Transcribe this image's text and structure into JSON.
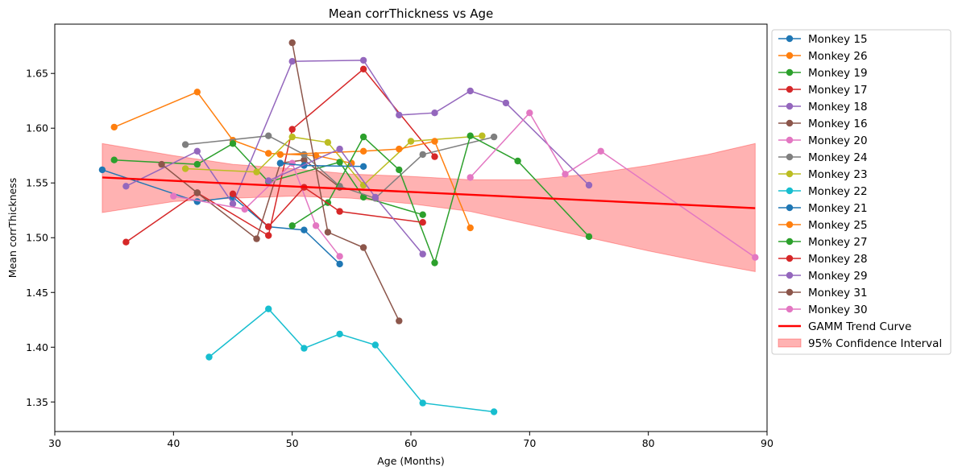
{
  "chart_data": {
    "type": "line",
    "title": "Mean corrThickness vs Age",
    "xlabel": "Age (Months)",
    "ylabel": "Mean corrThickness",
    "xlim": [
      30,
      90
    ],
    "ylim": [
      1.323,
      1.695
    ],
    "xticks": [
      "30",
      "40",
      "50",
      "60",
      "70",
      "80",
      "90"
    ],
    "yticks": [
      "1.35",
      "1.40",
      "1.45",
      "1.50",
      "1.55",
      "1.60",
      "1.65"
    ],
    "grid": false,
    "legend_position": "outside-right",
    "series": [
      {
        "name": "Monkey 15",
        "color": "#1f77b4",
        "x": [
          34,
          42,
          45,
          48,
          51,
          54
        ],
        "y": [
          1.562,
          1.533,
          1.537,
          1.51,
          1.507,
          1.476
        ]
      },
      {
        "name": "Monkey 26",
        "color": "#ff7f0e",
        "x": [
          35,
          42,
          45,
          48,
          52,
          55
        ],
        "y": [
          1.601,
          1.633,
          1.589,
          1.577,
          1.575,
          1.568
        ]
      },
      {
        "name": "Monkey 19",
        "color": "#2ca02c",
        "x": [
          35,
          42,
          45,
          48,
          54,
          56,
          61
        ],
        "y": [
          1.571,
          1.567,
          1.586,
          1.551,
          1.569,
          1.537,
          1.521
        ]
      },
      {
        "name": "Monkey 17",
        "color": "#d62728",
        "x": [
          36,
          42,
          48,
          50,
          56,
          62
        ],
        "y": [
          1.496,
          1.541,
          1.502,
          1.599,
          1.654,
          1.574
        ]
      },
      {
        "name": "Monkey 18",
        "color": "#9467bd",
        "x": [
          36,
          42,
          45,
          50,
          56,
          59,
          62,
          65,
          68,
          75
        ],
        "y": [
          1.547,
          1.579,
          1.531,
          1.661,
          1.662,
          1.612,
          1.614,
          1.634,
          1.623,
          1.548
        ]
      },
      {
        "name": "Monkey 16",
        "color": "#8c564b",
        "x": [
          39,
          42,
          47,
          49,
          51,
          54
        ],
        "y": [
          1.567,
          1.541,
          1.499,
          1.568,
          1.571,
          1.546
        ]
      },
      {
        "name": "Monkey 20",
        "color": "#e377c2",
        "x": [
          40,
          46,
          50,
          52,
          54
        ],
        "y": [
          1.538,
          1.526,
          1.568,
          1.511,
          1.483
        ]
      },
      {
        "name": "Monkey 24",
        "color": "#7f7f7f",
        "x": [
          41,
          48,
          51,
          54,
          57,
          61,
          67
        ],
        "y": [
          1.585,
          1.593,
          1.576,
          1.547,
          1.536,
          1.576,
          1.592
        ]
      },
      {
        "name": "Monkey 23",
        "color": "#bcbd22",
        "x": [
          41,
          47,
          50,
          53,
          56,
          60,
          66
        ],
        "y": [
          1.563,
          1.56,
          1.592,
          1.587,
          1.548,
          1.588,
          1.593
        ]
      },
      {
        "name": "Monkey 22",
        "color": "#17becf",
        "x": [
          43,
          48,
          51,
          54,
          57,
          61,
          67
        ],
        "y": [
          1.391,
          1.435,
          1.399,
          1.412,
          1.402,
          1.349,
          1.341
        ]
      },
      {
        "name": "Monkey 21",
        "color": "#1f77b4",
        "x": [
          49,
          51,
          56
        ],
        "y": [
          1.568,
          1.566,
          1.565
        ]
      },
      {
        "name": "Monkey 25",
        "color": "#ff7f0e",
        "x": [
          49,
          56,
          59,
          62,
          65
        ],
        "y": [
          1.576,
          1.579,
          1.581,
          1.588,
          1.509
        ]
      },
      {
        "name": "Monkey 27",
        "color": "#2ca02c",
        "x": [
          50,
          53,
          56,
          59,
          62,
          65,
          69,
          75
        ],
        "y": [
          1.511,
          1.532,
          1.592,
          1.562,
          1.477,
          1.593,
          1.57,
          1.501
        ]
      },
      {
        "name": "Monkey 28",
        "color": "#d62728",
        "x": [
          45,
          48,
          51,
          54,
          61
        ],
        "y": [
          1.54,
          1.51,
          1.546,
          1.524,
          1.514
        ]
      },
      {
        "name": "Monkey 29",
        "color": "#9467bd",
        "x": [
          48,
          54,
          57,
          61
        ],
        "y": [
          1.552,
          1.581,
          1.537,
          1.485
        ]
      },
      {
        "name": "Monkey 31",
        "color": "#8c564b",
        "x": [
          50,
          53,
          56,
          59
        ],
        "y": [
          1.678,
          1.505,
          1.491,
          1.424
        ]
      },
      {
        "name": "Monkey 30",
        "color": "#e377c2",
        "x": [
          65,
          70,
          73,
          76,
          89
        ],
        "y": [
          1.555,
          1.614,
          1.558,
          1.579,
          1.482
        ]
      }
    ],
    "trend": {
      "name": "GAMM Trend Curve",
      "color": "#ff0000",
      "x": [
        34,
        89
      ],
      "y": [
        1.555,
        1.527
      ]
    },
    "confidence_band": {
      "name": "95% Confidence Interval",
      "color": "#ff0000",
      "x": [
        34,
        40,
        45,
        50,
        55,
        60,
        65,
        70,
        75,
        80,
        85,
        89
      ],
      "lower": [
        1.523,
        1.533,
        1.536,
        1.538,
        1.536,
        1.531,
        1.524,
        1.512,
        1.5,
        1.488,
        1.477,
        1.469
      ],
      "upper": [
        1.586,
        1.575,
        1.567,
        1.563,
        1.558,
        1.556,
        1.553,
        1.553,
        1.558,
        1.566,
        1.576,
        1.586
      ]
    }
  }
}
